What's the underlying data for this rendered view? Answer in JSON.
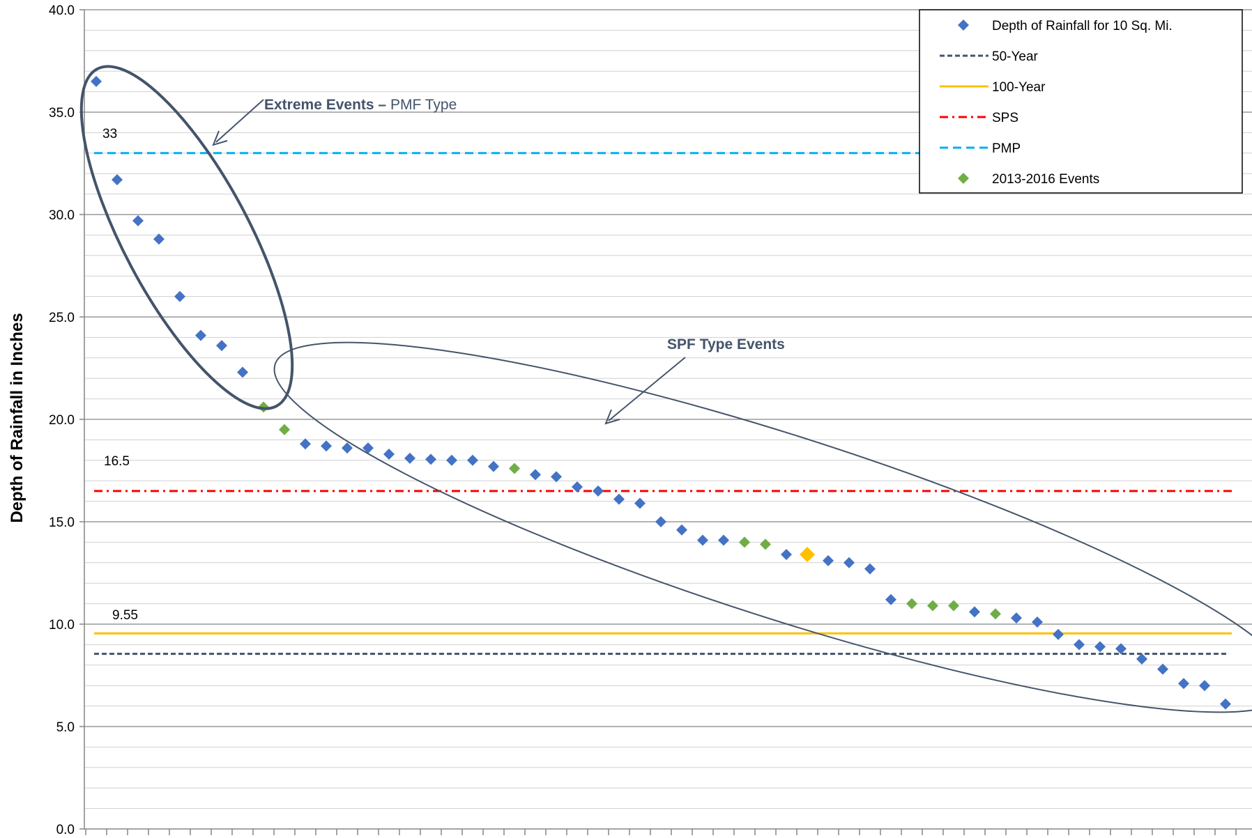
{
  "chart_data": {
    "type": "scatter",
    "title": "",
    "xlabel": "",
    "ylabel": "Depth of Rainfall in Inches",
    "ylim": [
      0,
      40
    ],
    "yticks": [
      "0.0",
      "5.0",
      "10.0",
      "15.0",
      "20.0",
      "25.0",
      "30.0",
      "35.0",
      "40.0"
    ],
    "grid": true,
    "legend_position": "top-right",
    "series": [
      {
        "name": "Depth of Rainfall for 10 Sq. Mi.",
        "color": "#4472c4",
        "marker": "diamond",
        "points": [
          {
            "x": 1,
            "y": 36.5
          },
          {
            "x": 2,
            "y": 31.7
          },
          {
            "x": 3,
            "y": 29.7
          },
          {
            "x": 4,
            "y": 28.8
          },
          {
            "x": 5,
            "y": 26.0
          },
          {
            "x": 6,
            "y": 24.1
          },
          {
            "x": 7,
            "y": 23.6
          },
          {
            "x": 8,
            "y": 22.3
          },
          {
            "x": 11,
            "y": 18.8
          },
          {
            "x": 12,
            "y": 18.7
          },
          {
            "x": 13,
            "y": 18.6
          },
          {
            "x": 14,
            "y": 18.6
          },
          {
            "x": 15,
            "y": 18.3
          },
          {
            "x": 16,
            "y": 18.1
          },
          {
            "x": 17,
            "y": 18.05
          },
          {
            "x": 18,
            "y": 18.0
          },
          {
            "x": 19,
            "y": 18.0
          },
          {
            "x": 20,
            "y": 17.7
          },
          {
            "x": 22,
            "y": 17.3
          },
          {
            "x": 23,
            "y": 17.2
          },
          {
            "x": 24,
            "y": 16.7
          },
          {
            "x": 25,
            "y": 16.5
          },
          {
            "x": 26,
            "y": 16.1
          },
          {
            "x": 27,
            "y": 15.9
          },
          {
            "x": 28,
            "y": 15.0
          },
          {
            "x": 29,
            "y": 14.6
          },
          {
            "x": 30,
            "y": 14.1
          },
          {
            "x": 31,
            "y": 14.1
          },
          {
            "x": 34,
            "y": 13.4
          },
          {
            "x": 36,
            "y": 13.1
          },
          {
            "x": 37,
            "y": 13.0
          },
          {
            "x": 38,
            "y": 12.7
          },
          {
            "x": 39,
            "y": 11.2
          },
          {
            "x": 43,
            "y": 10.6
          },
          {
            "x": 45,
            "y": 10.3
          },
          {
            "x": 46,
            "y": 10.1
          },
          {
            "x": 47,
            "y": 9.5
          },
          {
            "x": 48,
            "y": 9.0
          },
          {
            "x": 49,
            "y": 8.9
          },
          {
            "x": 50,
            "y": 8.8
          },
          {
            "x": 51,
            "y": 8.3
          },
          {
            "x": 52,
            "y": 7.8
          },
          {
            "x": 53,
            "y": 7.1
          },
          {
            "x": 54,
            "y": 7.0
          },
          {
            "x": 55,
            "y": 6.1
          }
        ]
      },
      {
        "name": "2013-2016 Events",
        "color": "#70ad47",
        "marker": "diamond",
        "points": [
          {
            "x": 9,
            "y": 20.6
          },
          {
            "x": 10,
            "y": 19.5
          },
          {
            "x": 21,
            "y": 17.6
          },
          {
            "x": 32,
            "y": 14.0
          },
          {
            "x": 33,
            "y": 13.9
          },
          {
            "x": 40,
            "y": 11.0
          },
          {
            "x": 41,
            "y": 10.9
          },
          {
            "x": 42,
            "y": 10.9
          },
          {
            "x": 44,
            "y": 10.5
          }
        ]
      },
      {
        "name": "",
        "color": "#ffc000",
        "marker": "diamond",
        "points": [
          {
            "x": 35,
            "y": 13.4
          }
        ]
      }
    ],
    "reference_lines": [
      {
        "name": "50-Year",
        "value": 8.55,
        "color": "#44546a",
        "style": "dotted"
      },
      {
        "name": "100-Year",
        "value": 9.55,
        "color": "#ffc000",
        "style": "solid"
      },
      {
        "name": "SPS",
        "value": 16.5,
        "color": "#ff0000",
        "style": "dash-dot"
      },
      {
        "name": "PMP",
        "value": 33,
        "color": "#00b0f0",
        "style": "dashed"
      }
    ],
    "value_labels": [
      {
        "text": "33",
        "y": 33
      },
      {
        "text": "16.5",
        "y": 16.5
      },
      {
        "text": "9.55",
        "y": 9.55
      }
    ],
    "annotations": {
      "extreme_bold": "Extreme Events –",
      "extreme_rest": " PMF Type",
      "spf": "SPF Type Events"
    },
    "x_tick_count": 55
  }
}
